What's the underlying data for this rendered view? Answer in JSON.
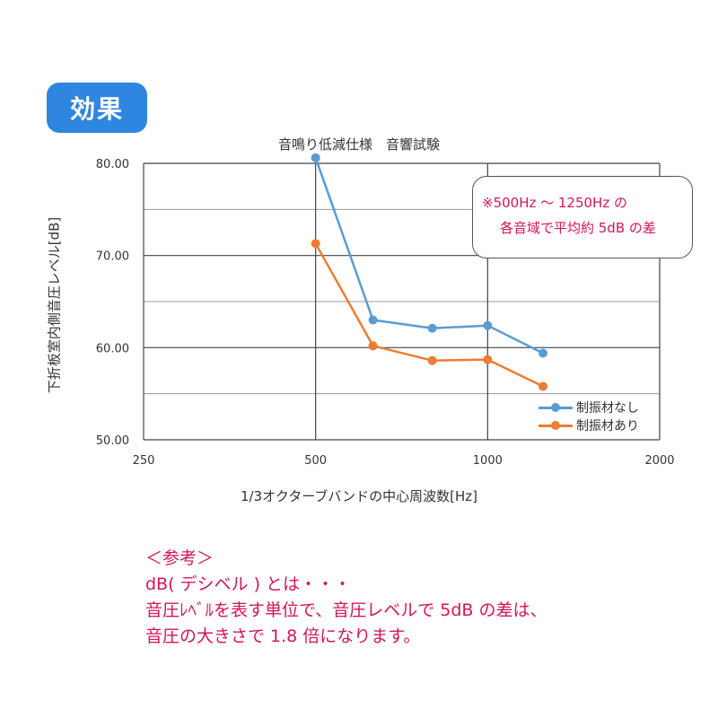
{
  "badge": {
    "label": "効果"
  },
  "callout": {
    "line1": "※500Hz 〜 1250Hz の",
    "line2": "各音域で平均約 5dB の差"
  },
  "note": {
    "heading": "＜参考＞",
    "line1": "dB( デシベル ) とは・・・",
    "line2": "音圧ﾚﾍﾞﾙを表す単位で、音圧レベルで 5dB の差は、",
    "line3": "音圧の大きさで 1.8 倍になります。"
  },
  "chart_data": {
    "type": "line",
    "title": "音鳴り低減仕様　音響試験",
    "xlabel": "1/3オクターブバンドの中心周波数[Hz]",
    "ylabel": "下折板室内側音圧レベル[dB]",
    "x_scale": "log",
    "xlim": [
      250,
      2000
    ],
    "ylim": [
      50,
      80
    ],
    "x_ticks": [
      250,
      500,
      1000,
      2000
    ],
    "x_tick_labels": [
      "250",
      "500",
      "1000",
      "2000"
    ],
    "y_ticks": [
      50,
      60,
      70,
      80
    ],
    "y_tick_labels": [
      "50.00",
      "60.00",
      "70.00",
      "80.00"
    ],
    "y_minor_grid": [
      55,
      65,
      75
    ],
    "grid": true,
    "legend_position": "bottom-right",
    "series": [
      {
        "name": "制振材なし",
        "color": "#5b9bd5",
        "x": [
          500,
          630,
          800,
          1000,
          1250
        ],
        "values": [
          80.6,
          63.0,
          62.1,
          62.4,
          59.4
        ]
      },
      {
        "name": "制振材あり",
        "color": "#ed7d31",
        "x": [
          500,
          630,
          800,
          1000,
          1250
        ],
        "values": [
          71.3,
          60.2,
          58.6,
          58.7,
          55.8
        ]
      }
    ]
  }
}
